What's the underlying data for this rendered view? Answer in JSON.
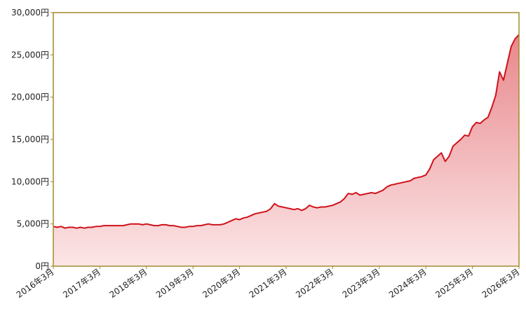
{
  "chart_data": {
    "type": "area",
    "color": "#d0121b",
    "x": [
      "2016-03",
      "2016-04",
      "2016-05",
      "2016-06",
      "2016-07",
      "2016-08",
      "2016-09",
      "2016-10",
      "2016-11",
      "2016-12",
      "2017-01",
      "2017-02",
      "2017-03",
      "2017-04",
      "2017-05",
      "2017-06",
      "2017-07",
      "2017-08",
      "2017-09",
      "2017-10",
      "2017-11",
      "2017-12",
      "2018-01",
      "2018-02",
      "2018-03",
      "2018-04",
      "2018-05",
      "2018-06",
      "2018-07",
      "2018-08",
      "2018-09",
      "2018-10",
      "2018-11",
      "2018-12",
      "2019-01",
      "2019-02",
      "2019-03",
      "2019-04",
      "2019-05",
      "2019-06",
      "2019-07",
      "2019-08",
      "2019-09",
      "2019-10",
      "2019-11",
      "2019-12",
      "2020-01",
      "2020-02",
      "2020-03",
      "2020-04",
      "2020-05",
      "2020-06",
      "2020-07",
      "2020-08",
      "2020-09",
      "2020-10",
      "2020-11",
      "2020-12",
      "2021-01",
      "2021-02",
      "2021-03",
      "2021-04",
      "2021-05",
      "2021-06",
      "2021-07",
      "2021-08",
      "2021-09",
      "2021-10",
      "2021-11",
      "2021-12",
      "2022-01",
      "2022-02",
      "2022-03",
      "2022-04",
      "2022-05",
      "2022-06",
      "2022-07",
      "2022-08",
      "2022-09",
      "2022-10",
      "2022-11",
      "2022-12",
      "2023-01",
      "2023-02",
      "2023-03",
      "2023-04",
      "2023-05",
      "2023-06",
      "2023-07",
      "2023-08",
      "2023-09",
      "2023-10",
      "2023-11",
      "2023-12",
      "2024-01",
      "2024-02",
      "2024-03",
      "2024-04",
      "2024-05",
      "2024-06",
      "2024-07",
      "2024-08",
      "2024-09",
      "2024-10",
      "2024-11",
      "2024-12",
      "2025-01",
      "2025-02",
      "2025-03",
      "2025-04",
      "2025-05",
      "2025-06",
      "2025-07",
      "2025-08",
      "2025-09",
      "2025-10",
      "2025-11",
      "2025-12",
      "2026-01",
      "2026-02",
      "2026-03"
    ],
    "values": [
      4700,
      4600,
      4700,
      4500,
      4600,
      4600,
      4500,
      4600,
      4500,
      4600,
      4600,
      4700,
      4700,
      4800,
      4800,
      4800,
      4800,
      4800,
      4800,
      4900,
      5000,
      5000,
      5000,
      4900,
      5000,
      4900,
      4800,
      4800,
      4900,
      4900,
      4800,
      4800,
      4700,
      4600,
      4600,
      4700,
      4700,
      4800,
      4800,
      4900,
      5000,
      4900,
      4900,
      4900,
      5000,
      5200,
      5400,
      5600,
      5500,
      5700,
      5800,
      6000,
      6200,
      6300,
      6400,
      6500,
      6800,
      7400,
      7100,
      7000,
      6900,
      6800,
      6700,
      6800,
      6600,
      6800,
      7200,
      7000,
      6900,
      7000,
      7000,
      7100,
      7200,
      7400,
      7600,
      8000,
      8600,
      8500,
      8700,
      8400,
      8500,
      8600,
      8700,
      8600,
      8800,
      9000,
      9400,
      9600,
      9700,
      9800,
      9900,
      10000,
      10100,
      10400,
      10500,
      10600,
      10800,
      11500,
      12600,
      13000,
      13400,
      12400,
      13000,
      14200,
      14600,
      15000,
      15500,
      15400,
      16500,
      17000,
      16900,
      17300,
      17600,
      18800,
      20200,
      23000,
      22000,
      24000,
      26000,
      26900,
      27400
    ],
    "xlim": [
      "2016-03",
      "2026-03"
    ],
    "xticks": [
      {
        "value": "2016-03",
        "label": "2016年3月"
      },
      {
        "value": "2017-03",
        "label": "2017年3月"
      },
      {
        "value": "2018-03",
        "label": "2018年3月"
      },
      {
        "value": "2019-03",
        "label": "2019年3月"
      },
      {
        "value": "2020-03",
        "label": "2020年3月"
      },
      {
        "value": "2021-03",
        "label": "2021年3月"
      },
      {
        "value": "2022-03",
        "label": "2022年3月"
      },
      {
        "value": "2023-03",
        "label": "2023年3月"
      },
      {
        "value": "2024-03",
        "label": "2024年3月"
      },
      {
        "value": "2025-03",
        "label": "2025年3月"
      },
      {
        "value": "2026-03",
        "label": "2026年3月"
      }
    ],
    "ylim": [
      0,
      30000
    ],
    "yticks": [
      {
        "value": 0,
        "label": "0円"
      },
      {
        "value": 5000,
        "label": "5,000円"
      },
      {
        "value": 10000,
        "label": "10,000円"
      },
      {
        "value": 15000,
        "label": "15,000円"
      },
      {
        "value": 20000,
        "label": "20,000円"
      },
      {
        "value": 25000,
        "label": "25,000円"
      },
      {
        "value": 30000,
        "label": "30,000円"
      }
    ]
  }
}
